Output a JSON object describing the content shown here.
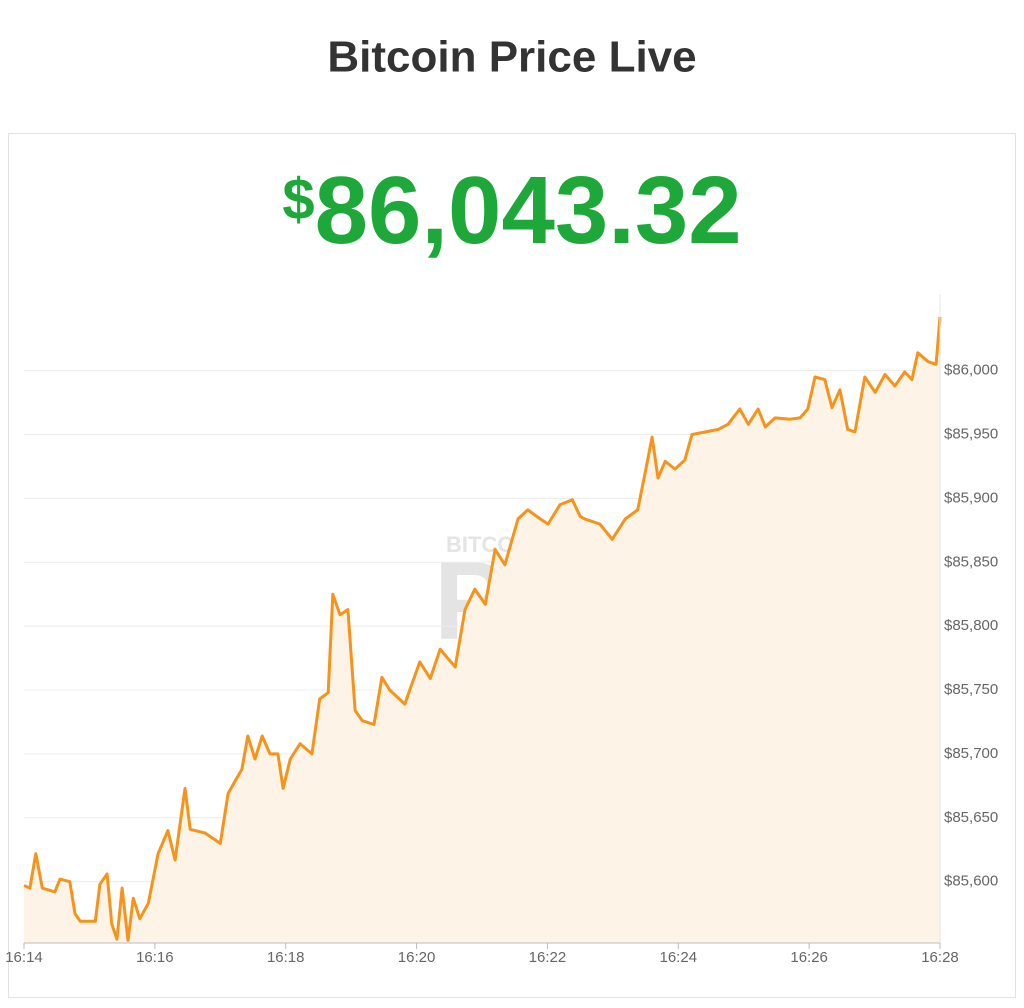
{
  "chart_data": {
    "type": "line",
    "title": "Bitcoin Price Live",
    "price_symbol": "$",
    "price": "86,043.32",
    "watermark": {
      "top": "BITCOIN MAGAZINE",
      "main": "PRO"
    },
    "color": "#f7931a",
    "area_color": "#fdf3e7",
    "grid": true,
    "x": [
      14.0,
      14.09,
      14.18,
      14.28,
      14.47,
      14.55,
      14.7,
      14.78,
      14.86,
      15.09,
      15.16,
      15.27,
      15.34,
      15.42,
      15.5,
      15.59,
      15.67,
      15.77,
      15.9,
      16.05,
      16.2,
      16.31,
      16.46,
      16.54,
      16.77,
      17.0,
      17.12,
      17.24,
      17.33,
      17.42,
      17.53,
      17.64,
      17.76,
      17.88,
      17.96,
      18.07,
      18.22,
      18.4,
      18.52,
      18.65,
      18.72,
      18.83,
      18.95,
      19.06,
      19.17,
      19.35,
      19.47,
      19.59,
      19.82,
      19.93,
      20.05,
      20.21,
      20.36,
      20.59,
      20.74,
      20.89,
      21.05,
      21.2,
      21.35,
      21.55,
      21.7,
      21.89,
      22.01,
      22.19,
      22.38,
      22.5,
      22.57,
      22.8,
      22.99,
      23.19,
      23.38,
      23.49,
      23.6,
      23.69,
      23.8,
      23.95,
      24.1,
      24.21,
      24.41,
      24.61,
      24.76,
      24.94,
      25.07,
      25.22,
      25.33,
      25.48,
      25.71,
      25.86,
      25.98,
      26.09,
      26.24,
      26.35,
      26.47,
      26.59,
      26.7,
      26.85,
      27.01,
      27.16,
      27.31,
      27.46,
      27.57,
      27.66,
      27.82,
      27.94,
      28.0
    ],
    "values": [
      85597,
      85595,
      85622,
      85595,
      85592,
      85602,
      85600,
      85575,
      85569,
      85569,
      85598,
      85606,
      85567,
      85555,
      85595,
      85554,
      85587,
      85571,
      85583,
      85622,
      85640,
      85617,
      85673,
      85641,
      85638,
      85630,
      85669,
      85680,
      85688,
      85714,
      85696,
      85714,
      85700,
      85700,
      85673,
      85696,
      85708,
      85700,
      85743,
      85748,
      85825,
      85809,
      85813,
      85734,
      85726,
      85723,
      85760,
      85750,
      85739,
      85755,
      85772,
      85759,
      85782,
      85768,
      85813,
      85829,
      85817,
      85860,
      85848,
      85884,
      85891,
      85884,
      85880,
      85895,
      85899,
      85886,
      85884,
      85880,
      85868,
      85884,
      85891,
      85919,
      85948,
      85916,
      85929,
      85923,
      85930,
      85950,
      85952,
      85954,
      85958,
      85970,
      85958,
      85970,
      85956,
      85963,
      85962,
      85963,
      85970,
      85995,
      85993,
      85971,
      85985,
      85954,
      85952,
      85995,
      85983,
      85997,
      85988,
      85999,
      85993,
      86014,
      86007,
      86005,
      86042
    ],
    "xlim": [
      14,
      28
    ],
    "xticks": [
      {
        "value": 14,
        "label": "16:14"
      },
      {
        "value": 16,
        "label": "16:16"
      },
      {
        "value": 18,
        "label": "16:18"
      },
      {
        "value": 20,
        "label": "16:20"
      },
      {
        "value": 22,
        "label": "16:22"
      },
      {
        "value": 24,
        "label": "16:24"
      },
      {
        "value": 26,
        "label": "16:26"
      },
      {
        "value": 28,
        "label": "16:28"
      }
    ],
    "ylim": [
      85552,
      86060
    ],
    "yticks": [
      {
        "value": 85600,
        "label": "$85,600"
      },
      {
        "value": 85650,
        "label": "$85,650"
      },
      {
        "value": 85700,
        "label": "$85,700"
      },
      {
        "value": 85750,
        "label": "$85,750"
      },
      {
        "value": 85800,
        "label": "$85,800"
      },
      {
        "value": 85850,
        "label": "$85,850"
      },
      {
        "value": 85900,
        "label": "$85,900"
      },
      {
        "value": 85950,
        "label": "$85,950"
      },
      {
        "value": 86000,
        "label": "$86,000"
      }
    ]
  }
}
